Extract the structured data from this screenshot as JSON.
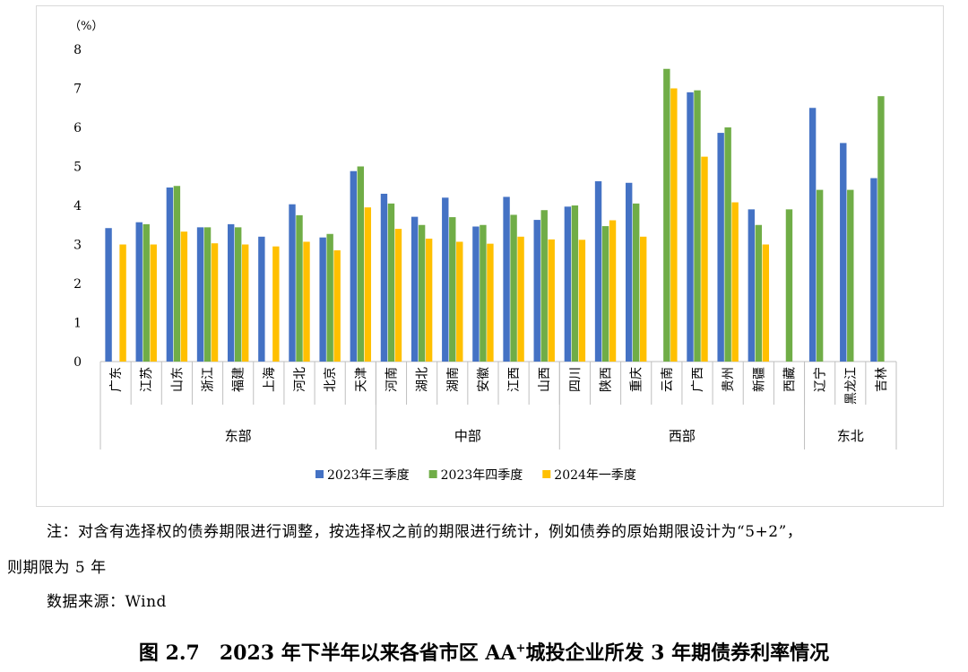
{
  "chart_data": {
    "type": "bar",
    "y_unit_label": "（%）",
    "ylim": [
      0,
      8
    ],
    "yticks": [
      "0",
      "1",
      "2",
      "3",
      "4",
      "5",
      "6",
      "7",
      "8"
    ],
    "grid": false,
    "legend_position": "bottom",
    "categories": [
      "广东",
      "江苏",
      "山东",
      "浙江",
      "福建",
      "上海",
      "河北",
      "北京",
      "天津",
      "河南",
      "湖北",
      "湖南",
      "安徽",
      "江西",
      "山西",
      "四川",
      "陕西",
      "重庆",
      "云南",
      "广西",
      "贵州",
      "新疆",
      "西藏",
      "辽宁",
      "黑龙江",
      "吉林"
    ],
    "groups": [
      {
        "name": "东部",
        "count": 9
      },
      {
        "name": "中部",
        "count": 6
      },
      {
        "name": "西部",
        "count": 8
      },
      {
        "name": "东北",
        "count": 3
      }
    ],
    "series": [
      {
        "name": "2023年三季度",
        "color": "#4472C4",
        "values": [
          3.42,
          3.57,
          4.46,
          3.44,
          3.52,
          3.2,
          4.03,
          3.18,
          4.88,
          4.3,
          3.71,
          4.2,
          3.46,
          4.22,
          3.63,
          3.97,
          4.62,
          4.58,
          null,
          6.9,
          5.86,
          3.9,
          null,
          6.5,
          5.6,
          4.7
        ]
      },
      {
        "name": "2023年四季度",
        "color": "#70AD47",
        "values": [
          null,
          3.52,
          4.5,
          3.44,
          3.44,
          null,
          3.75,
          3.27,
          5.0,
          4.05,
          3.5,
          3.7,
          3.5,
          3.76,
          3.88,
          4.0,
          3.47,
          4.05,
          7.5,
          6.95,
          6.0,
          3.5,
          3.9,
          4.4,
          4.4,
          6.8
        ]
      },
      {
        "name": "2024年一季度",
        "color": "#FFC000",
        "values": [
          3.0,
          3.0,
          3.33,
          3.03,
          3.0,
          2.95,
          3.07,
          2.85,
          3.95,
          3.4,
          3.15,
          3.07,
          3.02,
          3.2,
          3.13,
          3.12,
          3.62,
          3.2,
          7.0,
          5.25,
          4.08,
          3.0,
          null,
          null,
          null,
          null
        ]
      }
    ]
  },
  "note": {
    "line1": "注：对含有选择权的债券期限进行调整，按选择权之前的期限进行统计，例如债券的原始期限设计为“5+2”，",
    "line2": "则期限为 5 年"
  },
  "source": "数据来源：Wind",
  "caption": {
    "prefix": "图 2.7　2023 年下半年以来各省市区 AA",
    "superscript": "+",
    "suffix": "城投企业所发 3 年期债券利率情况"
  }
}
